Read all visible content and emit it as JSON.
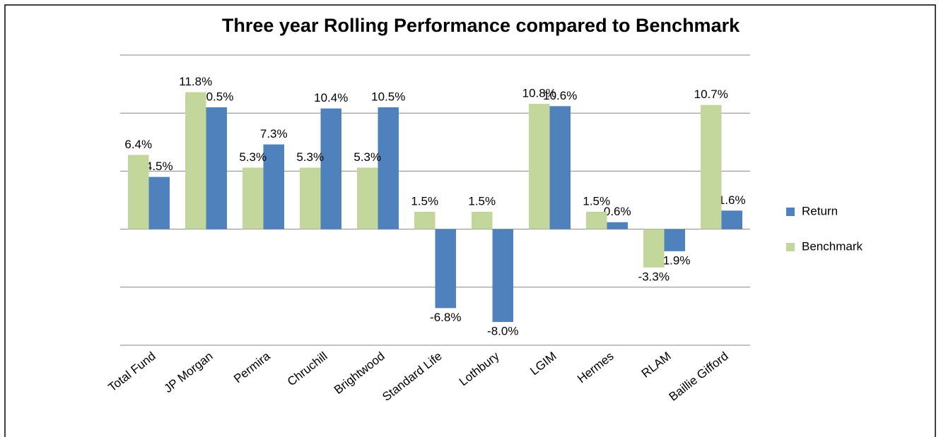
{
  "chart_data": {
    "type": "bar",
    "title": "Three year Rolling Performance compared to Benchmark",
    "categories": [
      "Total Fund",
      "JP Morgan",
      "Permira",
      "Chruchill",
      "Brightwood",
      "Standard Life",
      "Lothbury",
      "LGIM",
      "Hermes",
      "RLAM",
      "Baillie Gifford"
    ],
    "series": [
      {
        "name": "Return",
        "color": "#4f81bd",
        "values": [
          4.5,
          10.5,
          7.3,
          10.4,
          10.5,
          -6.8,
          -8.0,
          10.6,
          0.6,
          -1.9,
          1.6
        ],
        "value_labels": [
          "4.5%",
          "10.5%",
          "7.3%",
          "10.4%",
          "10.5%",
          "-6.8%",
          "-8.0%",
          "10.6%",
          "0.6%",
          "-1.9%",
          "1.6%"
        ]
      },
      {
        "name": "Benchmark",
        "color": "#c3d69b",
        "values": [
          6.4,
          11.8,
          5.3,
          5.3,
          5.3,
          1.5,
          1.5,
          10.8,
          1.5,
          -3.3,
          10.7
        ],
        "value_labels": [
          "6.4%",
          "11.8%",
          "5.3%",
          "5.3%",
          "5.3%",
          "1.5%",
          "1.5%",
          "10.8%",
          "1.5%",
          "-3.3%",
          "10.7%"
        ]
      }
    ],
    "ylim": [
      -10,
      15
    ],
    "yticks": [
      -10,
      -5,
      0,
      5,
      10,
      15
    ],
    "grid": true,
    "legend": "right"
  }
}
